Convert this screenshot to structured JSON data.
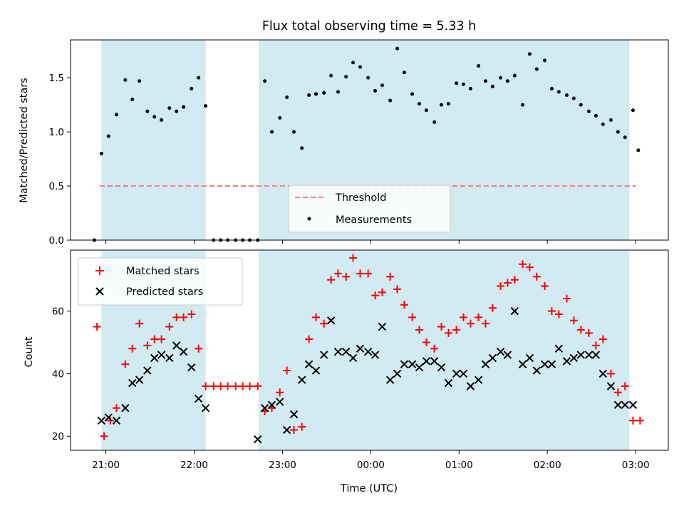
{
  "title": "Flux total observing time = 5.33 h",
  "colors": {
    "band": "#add8e6",
    "threshold": "#f08080",
    "measurement": "#000000",
    "matched": "#ff0000",
    "predicted": "#000000"
  },
  "chart_data": [
    {
      "type": "scatter",
      "panel": "top",
      "ylabel": "Matched/Predicted stars",
      "ylim": [
        0,
        1.85
      ],
      "yticks": [
        0.0,
        0.5,
        1.0,
        1.5
      ],
      "ytick_labels": [
        "0.0",
        "0.5",
        "1.0",
        "1.5"
      ],
      "xlim": [
        -0.4,
        6.37
      ],
      "observing_bands": [
        [
          -0.05,
          1.13
        ],
        [
          1.73,
          5.93
        ]
      ],
      "threshold": {
        "name": "Threshold",
        "value": 0.5,
        "x_range": [
          -0.07,
          6.0
        ]
      },
      "legend": {
        "location": "lower center",
        "entries": [
          "Threshold",
          "Measurements"
        ]
      },
      "series": [
        {
          "name": "Measurements",
          "x": [
            -0.13,
            -0.05,
            0.03,
            0.12,
            0.22,
            0.3,
            0.38,
            0.47,
            0.55,
            0.63,
            0.72,
            0.8,
            0.88,
            0.97,
            1.05,
            1.13,
            1.22,
            1.3,
            1.38,
            1.47,
            1.55,
            1.63,
            1.72,
            1.8,
            1.88,
            1.97,
            2.05,
            2.13,
            2.22,
            2.3,
            2.38,
            2.47,
            2.55,
            2.63,
            2.72,
            2.8,
            2.88,
            2.97,
            3.05,
            3.13,
            3.22,
            3.3,
            3.38,
            3.47,
            3.55,
            3.63,
            3.72,
            3.8,
            3.88,
            3.97,
            4.05,
            4.13,
            4.22,
            4.3,
            4.38,
            4.47,
            4.55,
            4.63,
            4.72,
            4.8,
            4.88,
            4.97,
            5.05,
            5.13,
            5.22,
            5.3,
            5.38,
            5.47,
            5.55,
            5.63,
            5.72,
            5.8,
            5.88,
            5.97,
            6.03
          ],
          "y": [
            0.0,
            0.8,
            0.96,
            1.16,
            1.48,
            1.3,
            1.47,
            1.19,
            1.14,
            1.11,
            1.22,
            1.19,
            1.23,
            1.4,
            1.5,
            1.24,
            0.0,
            0.0,
            0.0,
            0.0,
            0.0,
            0.0,
            0.0,
            1.47,
            1.0,
            1.13,
            1.32,
            1.0,
            0.85,
            1.34,
            1.35,
            1.36,
            1.52,
            1.37,
            1.51,
            1.64,
            1.6,
            1.5,
            1.38,
            1.43,
            1.29,
            1.77,
            1.55,
            1.35,
            1.26,
            1.2,
            1.09,
            1.25,
            1.26,
            1.45,
            1.44,
            1.4,
            1.61,
            1.47,
            1.42,
            1.5,
            1.47,
            1.52,
            1.25,
            1.72,
            1.58,
            1.66,
            1.4,
            1.37,
            1.34,
            1.31,
            1.25,
            1.19,
            1.15,
            1.07,
            1.11,
            1.0,
            0.95,
            1.2,
            0.83
          ]
        }
      ]
    },
    {
      "type": "scatter",
      "panel": "bottom",
      "ylabel": "Count",
      "xlabel": "Time (UTC)",
      "ylim": [
        15.5,
        79.5
      ],
      "yticks": [
        20,
        40,
        60
      ],
      "ytick_labels": [
        "20",
        "40",
        "60"
      ],
      "xlim": [
        -0.4,
        6.37
      ],
      "xticks": [
        0,
        1,
        2,
        3,
        4,
        5,
        6
      ],
      "xtick_labels": [
        "21:00",
        "22:00",
        "23:00",
        "00:00",
        "01:00",
        "02:00",
        "03:00"
      ],
      "observing_bands": [
        [
          -0.05,
          1.13
        ],
        [
          1.73,
          5.93
        ]
      ],
      "legend": {
        "location": "upper left",
        "entries": [
          "Matched stars",
          "Predicted stars"
        ]
      },
      "series": [
        {
          "name": "Matched stars",
          "marker": "plus",
          "x": [
            -0.1,
            -0.02,
            0.05,
            0.12,
            0.22,
            0.3,
            0.38,
            0.47,
            0.55,
            0.63,
            0.72,
            0.8,
            0.88,
            0.97,
            1.05,
            1.13,
            1.22,
            1.3,
            1.38,
            1.47,
            1.55,
            1.63,
            1.72,
            1.8,
            1.88,
            1.97,
            2.05,
            2.13,
            2.22,
            2.3,
            2.38,
            2.47,
            2.55,
            2.63,
            2.72,
            2.8,
            2.88,
            2.97,
            3.05,
            3.13,
            3.22,
            3.3,
            3.38,
            3.47,
            3.55,
            3.63,
            3.72,
            3.8,
            3.88,
            3.97,
            4.05,
            4.13,
            4.22,
            4.3,
            4.38,
            4.47,
            4.55,
            4.63,
            4.72,
            4.8,
            4.88,
            4.97,
            5.05,
            5.13,
            5.22,
            5.3,
            5.38,
            5.47,
            5.55,
            5.63,
            5.72,
            5.8,
            5.88,
            5.97,
            6.05
          ],
          "y": [
            55,
            20,
            25,
            29,
            43,
            48,
            56,
            49,
            51,
            51,
            55,
            58,
            58,
            59,
            48,
            36,
            36,
            36,
            36,
            36,
            36,
            36,
            36,
            28,
            29,
            34,
            41,
            22,
            23,
            51,
            58,
            56,
            70,
            72,
            71,
            77,
            72,
            72,
            65,
            66,
            71,
            67,
            62,
            58,
            54,
            50,
            48,
            55,
            53,
            54,
            58,
            56,
            58,
            56,
            61,
            68,
            69,
            70,
            75,
            74,
            71,
            68,
            60,
            59,
            64,
            57,
            54,
            53,
            49,
            51,
            40,
            34,
            36,
            25,
            25
          ]
        },
        {
          "name": "Predicted stars",
          "marker": "x",
          "x": [
            -0.05,
            0.03,
            0.12,
            0.22,
            0.3,
            0.38,
            0.47,
            0.55,
            0.63,
            0.72,
            0.8,
            0.88,
            0.97,
            1.05,
            1.13,
            1.72,
            1.8,
            1.88,
            1.97,
            2.05,
            2.13,
            2.22,
            2.3,
            2.38,
            2.47,
            2.55,
            2.63,
            2.72,
            2.8,
            2.88,
            2.97,
            3.05,
            3.13,
            3.22,
            3.3,
            3.38,
            3.47,
            3.55,
            3.63,
            3.72,
            3.8,
            3.88,
            3.97,
            4.05,
            4.13,
            4.22,
            4.3,
            4.38,
            4.47,
            4.55,
            4.63,
            4.72,
            4.8,
            4.88,
            4.97,
            5.05,
            5.13,
            5.22,
            5.3,
            5.38,
            5.47,
            5.55,
            5.63,
            5.72,
            5.8,
            5.88,
            5.97
          ],
          "y": [
            25,
            26,
            25,
            29,
            37,
            38,
            41,
            45,
            46,
            45,
            49,
            47,
            42,
            32,
            29,
            19,
            29,
            30,
            31,
            22,
            27,
            38,
            43,
            41,
            46,
            57,
            47,
            47,
            45,
            48,
            47,
            46,
            55,
            38,
            40,
            43,
            43,
            42,
            44,
            44,
            42,
            37,
            40,
            40,
            36,
            38,
            43,
            45,
            47,
            46,
            60,
            43,
            45,
            41,
            43,
            43,
            48,
            44,
            45,
            46,
            46,
            46,
            40,
            36,
            30,
            30,
            30
          ]
        }
      ]
    }
  ]
}
